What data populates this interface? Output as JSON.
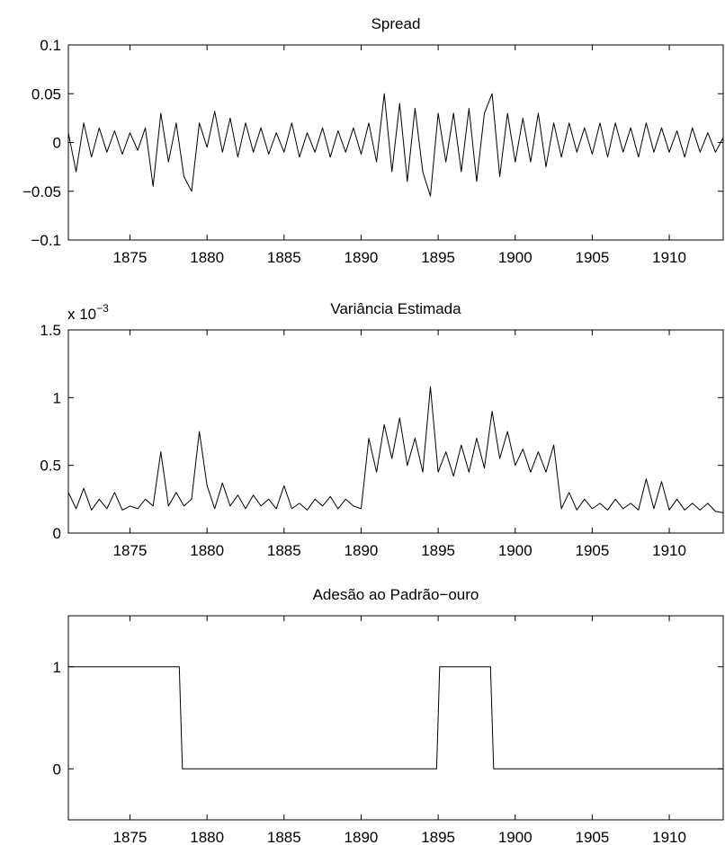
{
  "chart_data": [
    {
      "type": "line",
      "title": "Spread",
      "xlim": [
        1871,
        1913.5
      ],
      "ylim": [
        -0.1,
        0.1
      ],
      "xticks": [
        1875,
        1880,
        1885,
        1890,
        1895,
        1900,
        1905,
        1910
      ],
      "xtick_labels": [
        "1875",
        "1880",
        "1885",
        "1890",
        "1895",
        "1900",
        "1905",
        "1910"
      ],
      "yticks": [
        -0.1,
        -0.05,
        0,
        0.05,
        0.1
      ],
      "ytick_labels": [
        "−0.1",
        "−0.05",
        "0",
        "0.05",
        "0.1"
      ],
      "series": [
        {
          "x": [
            1871,
            1871.5,
            1872,
            1872.5,
            1873,
            1873.5,
            1874,
            1874.5,
            1875,
            1875.5,
            1876,
            1876.5,
            1877,
            1877.5,
            1878,
            1878.5,
            1879,
            1879.5,
            1880,
            1880.5,
            1881,
            1881.5,
            1882,
            1882.5,
            1883,
            1883.5,
            1884,
            1884.5,
            1885,
            1885.5,
            1886,
            1886.5,
            1887,
            1887.5,
            1888,
            1888.5,
            1889,
            1889.5,
            1890,
            1890.5,
            1891,
            1891.5,
            1892,
            1892.5,
            1893,
            1893.5,
            1894,
            1894.5,
            1895,
            1895.5,
            1896,
            1896.5,
            1897,
            1897.5,
            1898,
            1898.5,
            1899,
            1899.5,
            1900,
            1900.5,
            1901,
            1901.5,
            1902,
            1902.5,
            1903,
            1903.5,
            1904,
            1904.5,
            1905,
            1905.5,
            1906,
            1906.5,
            1907,
            1907.5,
            1908,
            1908.5,
            1909,
            1909.5,
            1910,
            1910.5,
            1911,
            1911.5,
            1912,
            1912.5,
            1913,
            1913.5
          ],
          "values": [
            0.01,
            -0.03,
            0.02,
            -0.015,
            0.015,
            -0.01,
            0.012,
            -0.012,
            0.01,
            -0.008,
            0.015,
            -0.045,
            0.03,
            -0.02,
            0.02,
            -0.035,
            -0.05,
            0.02,
            -0.005,
            0.032,
            -0.01,
            0.025,
            -0.015,
            0.02,
            -0.01,
            0.015,
            -0.012,
            0.01,
            -0.01,
            0.02,
            -0.015,
            0.01,
            -0.01,
            0.015,
            -0.015,
            0.012,
            -0.01,
            0.015,
            -0.012,
            0.02,
            -0.02,
            0.05,
            -0.03,
            0.04,
            -0.04,
            0.035,
            -0.03,
            -0.055,
            0.03,
            -0.02,
            0.03,
            -0.03,
            0.035,
            -0.04,
            0.03,
            0.05,
            -0.035,
            0.03,
            -0.02,
            0.025,
            -0.02,
            0.03,
            -0.025,
            0.02,
            -0.015,
            0.02,
            -0.01,
            0.015,
            -0.012,
            0.02,
            -0.015,
            0.02,
            -0.01,
            0.015,
            -0.015,
            0.02,
            -0.01,
            0.015,
            -0.01,
            0.012,
            -0.015,
            0.015,
            -0.01,
            0.01,
            -0.01,
            0.005
          ]
        }
      ]
    },
    {
      "type": "line",
      "title": "Variância Estimada",
      "scale_label_prefix": "x 10",
      "scale_label_exponent": "−3",
      "xlim": [
        1871,
        1913.5
      ],
      "ylim": [
        0,
        1.5
      ],
      "xticks": [
        1875,
        1880,
        1885,
        1890,
        1895,
        1900,
        1905,
        1910
      ],
      "xtick_labels": [
        "1875",
        "1880",
        "1885",
        "1890",
        "1895",
        "1900",
        "1905",
        "1910"
      ],
      "yticks": [
        0,
        0.5,
        1,
        1.5
      ],
      "ytick_labels": [
        "0",
        "0.5",
        "1",
        "1.5"
      ],
      "series": [
        {
          "x": [
            1871,
            1871.5,
            1872,
            1872.5,
            1873,
            1873.5,
            1874,
            1874.5,
            1875,
            1875.5,
            1876,
            1876.5,
            1877,
            1877.5,
            1878,
            1878.5,
            1879,
            1879.5,
            1880,
            1880.5,
            1881,
            1881.5,
            1882,
            1882.5,
            1883,
            1883.5,
            1884,
            1884.5,
            1885,
            1885.5,
            1886,
            1886.5,
            1887,
            1887.5,
            1888,
            1888.5,
            1889,
            1889.5,
            1890,
            1890.5,
            1891,
            1891.5,
            1892,
            1892.5,
            1893,
            1893.5,
            1894,
            1894.5,
            1895,
            1895.5,
            1896,
            1896.5,
            1897,
            1897.5,
            1898,
            1898.5,
            1899,
            1899.5,
            1900,
            1900.5,
            1901,
            1901.5,
            1902,
            1902.5,
            1903,
            1903.5,
            1904,
            1904.5,
            1905,
            1905.5,
            1906,
            1906.5,
            1907,
            1907.5,
            1908,
            1908.5,
            1909,
            1909.5,
            1910,
            1910.5,
            1911,
            1911.5,
            1912,
            1912.5,
            1913,
            1913.5
          ],
          "values": [
            0.3,
            0.18,
            0.33,
            0.17,
            0.25,
            0.18,
            0.3,
            0.17,
            0.2,
            0.18,
            0.25,
            0.2,
            0.6,
            0.2,
            0.3,
            0.2,
            0.25,
            0.75,
            0.35,
            0.18,
            0.37,
            0.2,
            0.28,
            0.18,
            0.28,
            0.2,
            0.25,
            0.18,
            0.35,
            0.18,
            0.22,
            0.17,
            0.25,
            0.2,
            0.27,
            0.18,
            0.25,
            0.2,
            0.18,
            0.7,
            0.45,
            0.8,
            0.55,
            0.85,
            0.5,
            0.7,
            0.45,
            1.08,
            0.45,
            0.6,
            0.42,
            0.65,
            0.45,
            0.7,
            0.48,
            0.9,
            0.55,
            0.75,
            0.5,
            0.62,
            0.45,
            0.6,
            0.45,
            0.65,
            0.18,
            0.3,
            0.17,
            0.25,
            0.18,
            0.22,
            0.17,
            0.25,
            0.18,
            0.22,
            0.17,
            0.4,
            0.18,
            0.38,
            0.17,
            0.25,
            0.17,
            0.22,
            0.17,
            0.22,
            0.16,
            0.15
          ]
        }
      ]
    },
    {
      "type": "line",
      "title": "Adesão ao Padrão−ouro",
      "xlim": [
        1871,
        1913.5
      ],
      "ylim": [
        -0.5,
        1.5
      ],
      "xticks": [
        1875,
        1880,
        1885,
        1890,
        1895,
        1900,
        1905,
        1910
      ],
      "xtick_labels": [
        "1875",
        "1880",
        "1885",
        "1890",
        "1895",
        "1900",
        "1905",
        "1910"
      ],
      "yticks": [
        0,
        1
      ],
      "ytick_labels": [
        "0",
        "1"
      ],
      "series": [
        {
          "x": [
            1871,
            1878.2,
            1878.4,
            1894.9,
            1895.1,
            1898.4,
            1898.6,
            1913.5
          ],
          "values": [
            1,
            1,
            0,
            0,
            1,
            1,
            0,
            0
          ]
        }
      ]
    }
  ]
}
